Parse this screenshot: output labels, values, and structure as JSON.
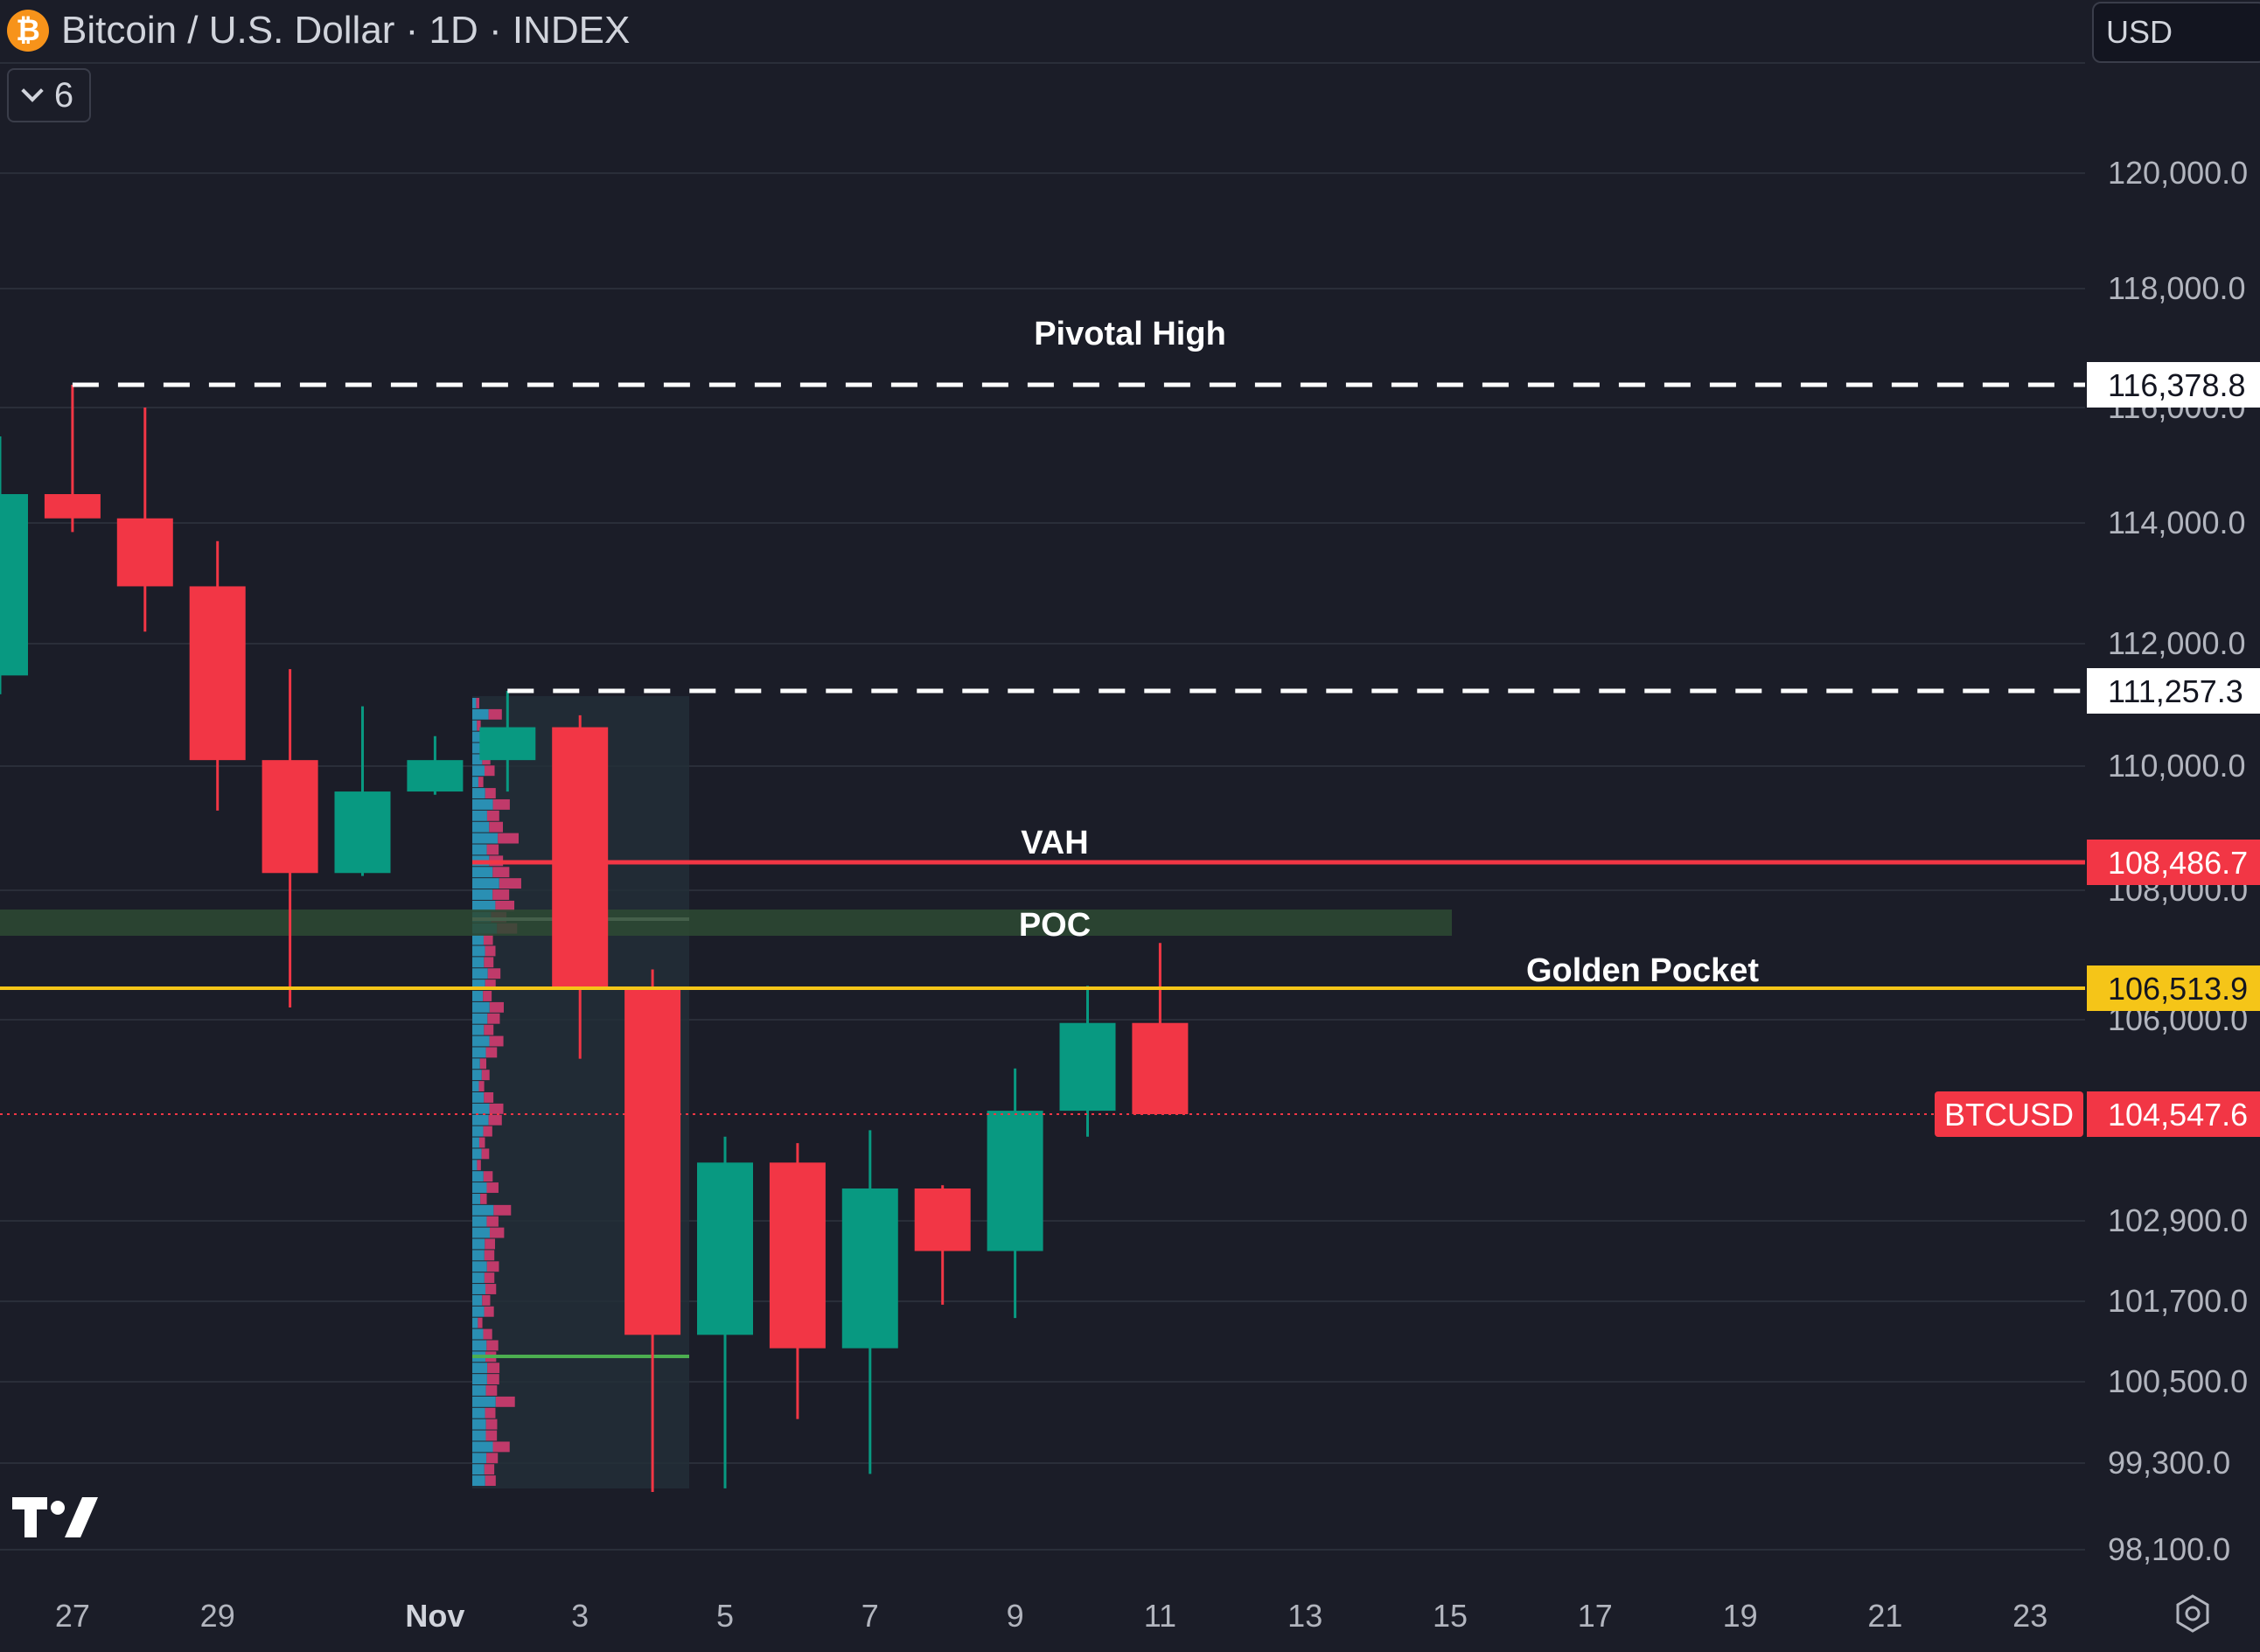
{
  "header": {
    "symbol_icon": "bitcoin-icon",
    "title": "Bitcoin / U.S. Dollar · 1D · INDEX",
    "collapse_count": "6",
    "currency": "USD"
  },
  "colors": {
    "background": "#1b1d28",
    "grid": "#2a2e39",
    "axis_text": "#b2b5be",
    "up": "#089981",
    "down": "#f23645",
    "golden_pocket": "#f5c518",
    "vah": "#f23645",
    "poc_zone": "#2d4a33",
    "volume_profile_bg": "#232f38"
  },
  "chart_data": {
    "type": "candlestick",
    "x_axis": {
      "labels": [
        "27",
        "29",
        "Nov",
        "3",
        "5",
        "7",
        "9",
        "11",
        "13",
        "15",
        "17",
        "19",
        "21",
        "23"
      ]
    },
    "y_axis": {
      "ticks": [
        "98,100.0",
        "99,300.0",
        "100,500.0",
        "101,700.0",
        "102,900.0",
        "106,000.0",
        "108,000.0",
        "110,000.0",
        "112,000.0",
        "114,000.0",
        "116,000.0",
        "118,000.0",
        "120,000.0"
      ],
      "range": [
        97300,
        123000
      ]
    },
    "candles": [
      {
        "date": "Oct 26",
        "open": 111500,
        "high": 115500,
        "low": 111200,
        "close": 114500
      },
      {
        "date": "Oct 27",
        "open": 114500,
        "high": 116378.8,
        "low": 113850,
        "close": 114080
      },
      {
        "date": "Oct 28",
        "open": 114080,
        "high": 116000,
        "low": 112200,
        "close": 112950
      },
      {
        "date": "Oct 29",
        "open": 112950,
        "high": 113700,
        "low": 109300,
        "close": 110100
      },
      {
        "date": "Oct 30",
        "open": 110100,
        "high": 111600,
        "low": 106200,
        "close": 108300
      },
      {
        "date": "Oct 31",
        "open": 108300,
        "high": 111000,
        "low": 108250,
        "close": 109600
      },
      {
        "date": "Nov 1",
        "open": 109600,
        "high": 110500,
        "low": 109550,
        "close": 110100
      },
      {
        "date": "Nov 2",
        "open": 110100,
        "high": 111257.3,
        "low": 109600,
        "close": 110650
      },
      {
        "date": "Nov 3",
        "open": 110650,
        "high": 110850,
        "low": 105400,
        "close": 106513.9
      },
      {
        "date": "Nov 4",
        "open": 106513.9,
        "high": 106800,
        "low": 98900,
        "close": 101200
      },
      {
        "date": "Nov 5",
        "open": 101200,
        "high": 104200,
        "low": 98950,
        "close": 103800
      },
      {
        "date": "Nov 6",
        "open": 103800,
        "high": 104100,
        "low": 99950,
        "close": 101000
      },
      {
        "date": "Nov 7",
        "open": 101000,
        "high": 104300,
        "low": 99150,
        "close": 103400
      },
      {
        "date": "Nov 8",
        "open": 103400,
        "high": 103450,
        "low": 101650,
        "close": 102450
      },
      {
        "date": "Nov 9",
        "open": 102450,
        "high": 105250,
        "low": 101450,
        "close": 104600
      },
      {
        "date": "Nov 10",
        "open": 104600,
        "high": 106550,
        "low": 104200,
        "close": 105950
      },
      {
        "date": "Nov 11",
        "open": 105950,
        "high": 107200,
        "low": 104547.6,
        "close": 104547.6
      }
    ],
    "levels": [
      {
        "name": "Pivotal High",
        "value": 116378.8,
        "label": "116,378.8",
        "style": "dashed",
        "color": "#ffffff"
      },
      {
        "name": "",
        "value": 111257.3,
        "label": "111,257.3",
        "style": "dashed",
        "color": "#ffffff"
      },
      {
        "name": "VAH",
        "value": 108486.7,
        "label": "108,486.7",
        "style": "solid",
        "color": "#f23645"
      },
      {
        "name": "POC",
        "value": 107600,
        "style": "zone"
      },
      {
        "name": "Golden Pocket",
        "value": 106513.9,
        "label": "106,513.9",
        "style": "solid",
        "color": "#f5c518"
      },
      {
        "name": "BTCUSD",
        "value": 104547.6,
        "label": "104,547.6",
        "style": "dotted",
        "color": "#f23645"
      }
    ]
  }
}
